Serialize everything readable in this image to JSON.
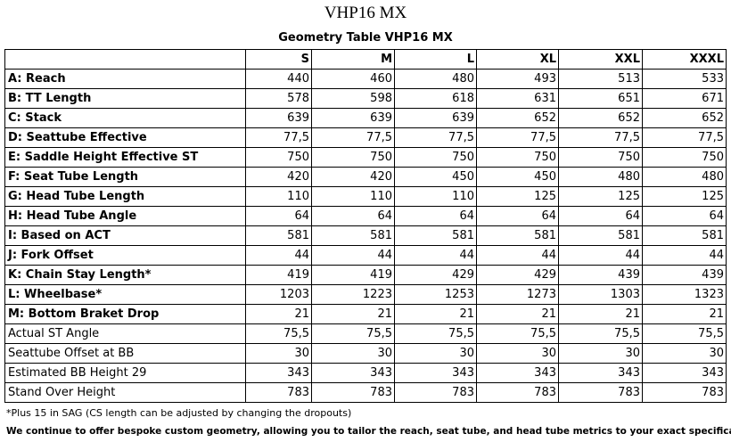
{
  "title": "VHP16 MX",
  "table": {
    "title": "Geometry Table VHP16 MX",
    "header": [
      "",
      "S",
      "M",
      "L",
      "XL",
      "XXL",
      "XXXL"
    ],
    "rows": [
      {
        "label": "A: Reach",
        "bold": true,
        "values": [
          "440",
          "460",
          "480",
          "493",
          "513",
          "533"
        ]
      },
      {
        "label": "B: TT Length",
        "bold": true,
        "values": [
          "578",
          "598",
          "618",
          "631",
          "651",
          "671"
        ]
      },
      {
        "label": "C: Stack",
        "bold": true,
        "values": [
          "639",
          "639",
          "639",
          "652",
          "652",
          "652"
        ]
      },
      {
        "label": "D: Seattube Effective",
        "bold": true,
        "values": [
          "77,5",
          "77,5",
          "77,5",
          "77,5",
          "77,5",
          "77,5"
        ]
      },
      {
        "label": "E: Saddle Height Effective ST",
        "bold": true,
        "values": [
          "750",
          "750",
          "750",
          "750",
          "750",
          "750"
        ]
      },
      {
        "label": "F: Seat Tube Length",
        "bold": true,
        "values": [
          "420",
          "420",
          "450",
          "450",
          "480",
          "480"
        ]
      },
      {
        "label": "G: Head Tube Length",
        "bold": true,
        "values": [
          "110",
          "110",
          "110",
          "125",
          "125",
          "125"
        ]
      },
      {
        "label": "H: Head Tube Angle",
        "bold": true,
        "values": [
          "64",
          "64",
          "64",
          "64",
          "64",
          "64"
        ]
      },
      {
        "label": "I: Based on ACT",
        "bold": true,
        "values": [
          "581",
          "581",
          "581",
          "581",
          "581",
          "581"
        ]
      },
      {
        "label": "J: Fork Offset",
        "bold": true,
        "values": [
          "44",
          "44",
          "44",
          "44",
          "44",
          "44"
        ]
      },
      {
        "label": "K: Chain Stay Length*",
        "bold": true,
        "values": [
          "419",
          "419",
          "429",
          "429",
          "439",
          "439"
        ]
      },
      {
        "label": "L: Wheelbase*",
        "bold": true,
        "values": [
          "1203",
          "1223",
          "1253",
          "1273",
          "1303",
          "1323"
        ]
      },
      {
        "label": "M: Bottom Braket Drop",
        "bold": true,
        "values": [
          "21",
          "21",
          "21",
          "21",
          "21",
          "21"
        ]
      },
      {
        "label": "Actual ST Angle",
        "bold": false,
        "values": [
          "75,5",
          "75,5",
          "75,5",
          "75,5",
          "75,5",
          "75,5"
        ]
      },
      {
        "label": "Seattube Offset at BB",
        "bold": false,
        "values": [
          "30",
          "30",
          "30",
          "30",
          "30",
          "30"
        ]
      },
      {
        "label": "Estimated BB Height 29",
        "bold": false,
        "values": [
          "343",
          "343",
          "343",
          "343",
          "343",
          "343"
        ]
      },
      {
        "label": "Stand Over Height",
        "bold": false,
        "values": [
          "783",
          "783",
          "783",
          "783",
          "783",
          "783"
        ]
      }
    ]
  },
  "footnote": "*Plus 15 in SAG (CS length can be adjusted by changing the dropouts)",
  "bespoke_note": "We continue to offer bespoke custom geometry, allowing you to tailor the reach, seat tube, and head tube metrics to your exact specifications."
}
